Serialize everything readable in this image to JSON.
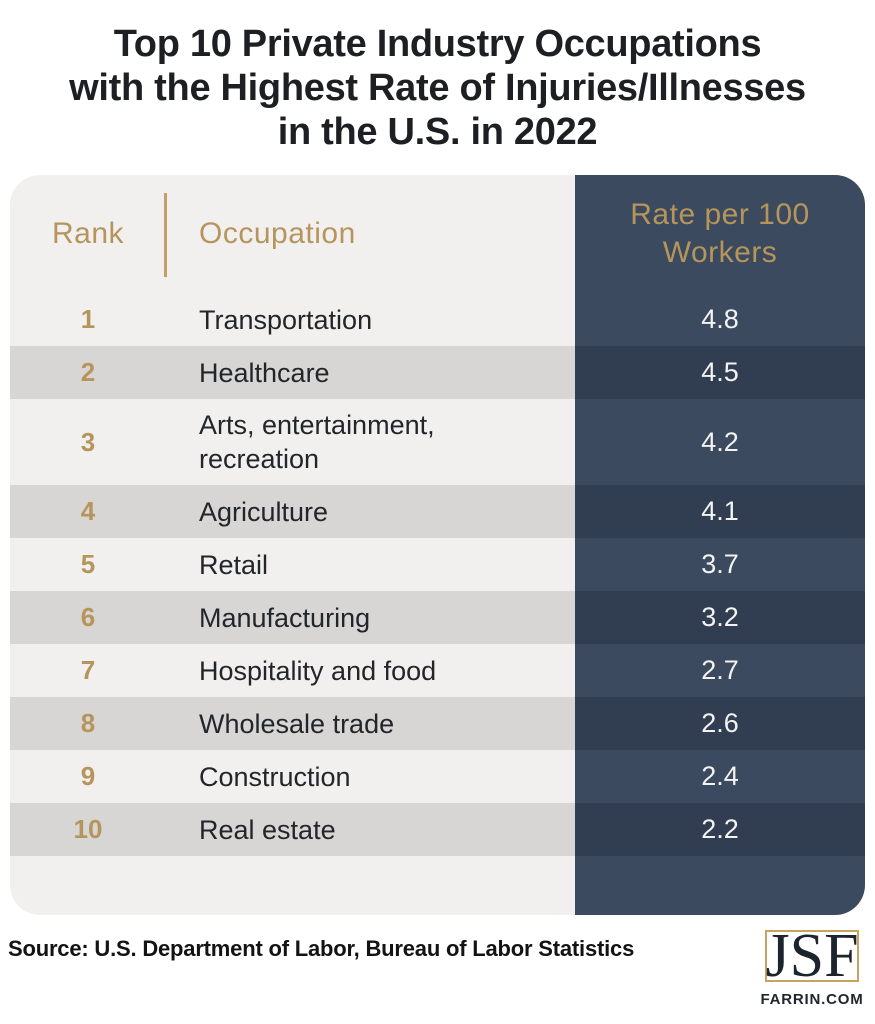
{
  "header": {
    "title_lines": [
      "Top 10 Private Industry Occupations",
      "with the Highest Rate of Injuries/Illnesses",
      "in the U.S. in 2022"
    ]
  },
  "table": {
    "col_rank_label": "Rank",
    "col_occupation_label": "Occupation",
    "col_rate_label": "Rate per 100 Workers",
    "rows": [
      {
        "rank": "1",
        "occupation": "Transportation",
        "rate": "4.8"
      },
      {
        "rank": "2",
        "occupation": "Healthcare",
        "rate": "4.5"
      },
      {
        "rank": "3",
        "occupation": "Arts, entertainment, recreation",
        "rate": "4.2"
      },
      {
        "rank": "4",
        "occupation": "Agriculture",
        "rate": "4.1"
      },
      {
        "rank": "5",
        "occupation": "Retail",
        "rate": "3.7"
      },
      {
        "rank": "6",
        "occupation": "Manufacturing",
        "rate": "3.2"
      },
      {
        "rank": "7",
        "occupation": "Hospitality and food",
        "rate": "2.7"
      },
      {
        "rank": "8",
        "occupation": "Wholesale trade",
        "rate": "2.6"
      },
      {
        "rank": "9",
        "occupation": "Construction",
        "rate": "2.4"
      },
      {
        "rank": "10",
        "occupation": "Real estate",
        "rate": "2.2"
      }
    ]
  },
  "footer": {
    "source": "Source: U.S. Department of Labor, Bureau of Labor Statistics",
    "logo_text": "JSF",
    "logo_subtext": "FARRIN.COM"
  },
  "colors": {
    "accent_gold": "#b6955c",
    "navy_light": "#3b4a5e",
    "navy_dark": "#313e51",
    "row_light": "#f1f0ee",
    "row_gray": "#d7d6d4",
    "rate_text": "#f3f3f3",
    "title_text": "#1d1f23",
    "logo_border": "#c8a25f"
  },
  "chart_data": {
    "type": "table",
    "title": "Top 10 Private Industry Occupations with the Highest Rate of Injuries/Illnesses in the U.S. in 2022",
    "columns": [
      "Rank",
      "Occupation",
      "Rate per 100 Workers"
    ],
    "categories": [
      "Transportation",
      "Healthcare",
      "Arts, entertainment, recreation",
      "Agriculture",
      "Retail",
      "Manufacturing",
      "Hospitality and food",
      "Wholesale trade",
      "Construction",
      "Real estate"
    ],
    "values": [
      4.8,
      4.5,
      4.2,
      4.1,
      3.7,
      3.2,
      2.7,
      2.6,
      2.4,
      2.2
    ],
    "value_unit": "injuries/illnesses per 100 workers",
    "source": "Source: U.S. Department of Labor, Bureau of Labor Statistics"
  }
}
